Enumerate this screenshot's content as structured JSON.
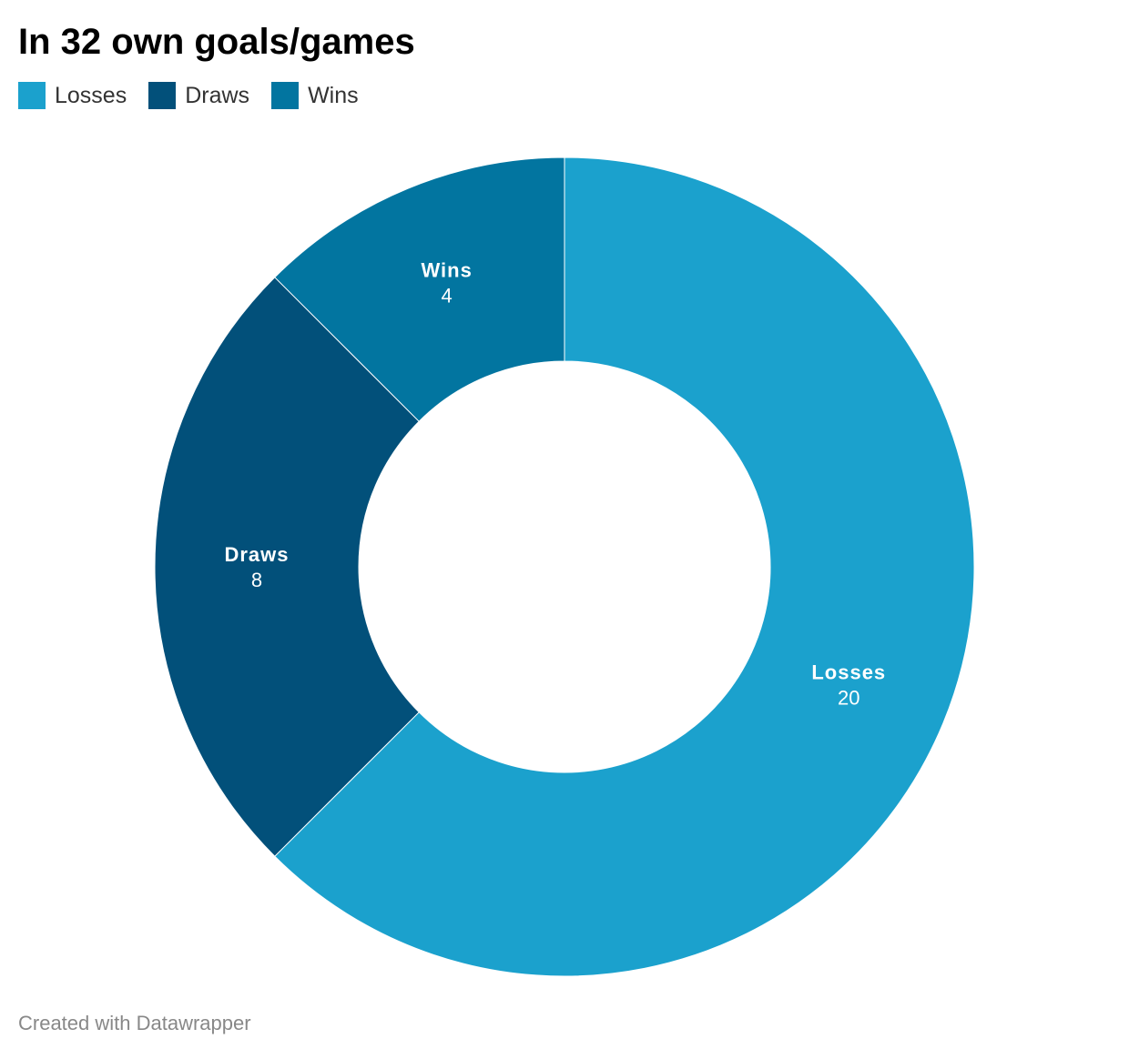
{
  "chart_data": {
    "type": "pie",
    "title": "In 32 own goals/games",
    "categories": [
      "Losses",
      "Draws",
      "Wins"
    ],
    "values": [
      20,
      8,
      4
    ],
    "colors": [
      "#1ba1cd",
      "#02507a",
      "#0275a0"
    ],
    "legend_position": "top-left",
    "donut": true
  },
  "footer": {
    "credit": "Created with Datawrapper"
  }
}
